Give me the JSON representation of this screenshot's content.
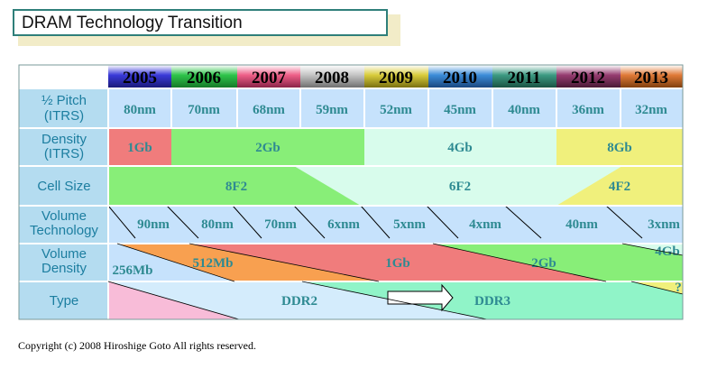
{
  "title": "DRAM Technology Transition",
  "years": [
    "2005",
    "2006",
    "2007",
    "2008",
    "2009",
    "2010",
    "2011",
    "2012",
    "2013"
  ],
  "year_colors": [
    "#3a3ad8",
    "#2ec44a",
    "#ee5f88",
    "#c4c4c4",
    "#d8cc3c",
    "#3c8cd8",
    "#3c9a82",
    "#963c70",
    "#e07a38"
  ],
  "row_labels": {
    "pitch": [
      "½ Pitch",
      "(ITRS)"
    ],
    "density": [
      "Density",
      "(ITRS)"
    ],
    "cell": [
      "Cell Size"
    ],
    "voltech": [
      "Volume",
      "Technology"
    ],
    "voldens": [
      "Volume",
      "Density"
    ],
    "type": [
      "Type"
    ]
  },
  "pitch_values": [
    "80nm",
    "70nm",
    "68nm",
    "59nm",
    "52nm",
    "45nm",
    "40nm",
    "36nm",
    "32nm"
  ],
  "density_values": [
    "1Gb",
    "2Gb",
    "4Gb",
    "8Gb"
  ],
  "cell_values": [
    "8F2",
    "6F2",
    "4F2"
  ],
  "voltech_values": [
    "90nm",
    "80nm",
    "70nm",
    "6xnm",
    "5xnm",
    "4xnm",
    "40nm",
    "3xnm"
  ],
  "voldens_values": [
    "256Mb",
    "512Mb",
    "1Gb",
    "2Gb",
    "4Gb"
  ],
  "type_values": [
    "DDR2",
    "DDR3",
    "?"
  ],
  "colors": {
    "label_cell": "#b4dcf0",
    "value_text": "#2e8a92",
    "red": "#f07c7c",
    "green": "#88ee78",
    "yellow": "#f0f07c",
    "pale_green": "#d8fcec",
    "blue_cell": "#c6e2fc",
    "orange": "#f8a050",
    "pink": "#f8bcd8",
    "ddr2": "#d4ecfc",
    "ddr3": "#90f4c8"
  },
  "copyright": "Copyright (c) 2008 Hiroshige Goto All rights reserved."
}
